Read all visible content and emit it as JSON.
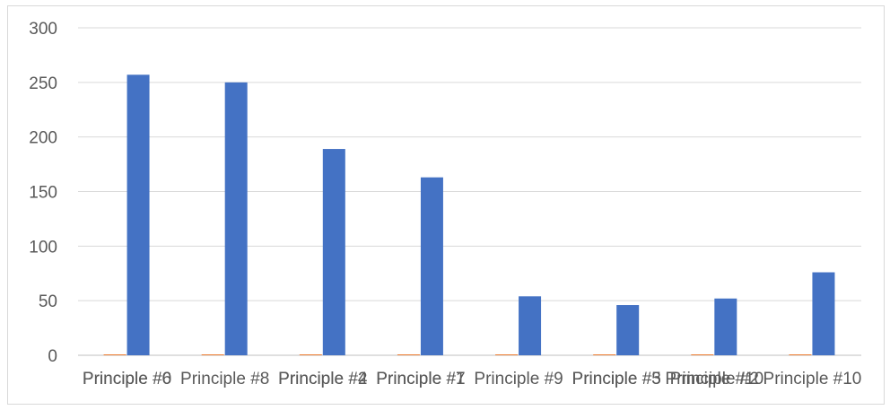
{
  "chart_data": {
    "type": "bar",
    "title": "",
    "xlabel": "",
    "ylabel": "",
    "ylim": [
      0,
      300
    ],
    "yticks": [
      0,
      50,
      100,
      150,
      200,
      250,
      300
    ],
    "grid": true,
    "legend": "none",
    "categories": [
      "Principle #6",
      "Principle #8",
      "Principle #4",
      "Principle #7",
      "Principle #9",
      "Principle #5",
      "Principle #10",
      "Principle #10"
    ],
    "overlay_labels": [
      "Principle #0",
      "",
      "Principle #2",
      "Principle #1",
      "",
      "Principle #3",
      "Principle #2",
      ""
    ],
    "series": [
      {
        "values": [
          0,
          0,
          0,
          0,
          0,
          0,
          0,
          0
        ],
        "color": "#ed7d31"
      },
      {
        "values": [
          257,
          250,
          189,
          163,
          54,
          46,
          52,
          76
        ],
        "color": "#4472c4"
      }
    ]
  }
}
